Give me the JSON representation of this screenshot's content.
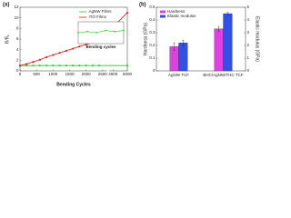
{
  "chart_data": [
    {
      "type": "line",
      "panel_label": "(a)",
      "xlabel": "Bending Cycles",
      "ylabel": "R/R₀",
      "x": [
        0,
        200,
        400,
        600,
        800,
        1000,
        1200,
        1400,
        1600,
        1800,
        2000,
        2200,
        2400,
        5000
      ],
      "series": [
        {
          "name": "AgNW Films",
          "color": "#22cc22",
          "marker": "square",
          "values": [
            1,
            1,
            1,
            1,
            1,
            1,
            1,
            1,
            1,
            1,
            1,
            1,
            1,
            1
          ]
        },
        {
          "name": "ITO Films",
          "color": "#e01010",
          "marker": "triangle",
          "values": [
            1,
            1.3,
            1.7,
            2.1,
            2.6,
            3.0,
            3.4,
            3.8,
            4.2,
            4.6,
            5.0,
            5.3,
            5.6,
            11
          ]
        }
      ],
      "xlim": [
        0,
        5000
      ],
      "xbreak": [
        2600,
        4400
      ],
      "xticks": [
        0,
        500,
        1000,
        1500,
        2000,
        2500,
        4500,
        5000
      ],
      "ylim": [
        0,
        12
      ],
      "yticks": [
        0,
        2,
        4,
        6,
        8,
        10,
        12
      ],
      "legend": "upper right",
      "inset": {
        "type": "line",
        "xlabel": "Bending cycles",
        "x": [
          0,
          1000,
          2000,
          3000,
          4000,
          5000
        ],
        "values": [
          1,
          1.01,
          1.0,
          1.02,
          1.01,
          1.02
        ],
        "color": "#22cc22",
        "xlim": [
          0,
          5000
        ],
        "ylim": [
          0.9,
          1.1
        ]
      }
    },
    {
      "type": "bar",
      "panel_label": "(b)",
      "ylabel": "Hardness (GPa)",
      "y2label": "Elastic modulus (GPa)",
      "categories": [
        "AgNW TCF",
        "BHC/AgNW/THC TCF"
      ],
      "series": [
        {
          "name": "Hardness",
          "color": "#e040e0",
          "values": [
            0.19,
            0.33
          ],
          "errors": [
            0.03,
            0.02
          ]
        },
        {
          "name": "Elastic modulus",
          "color": "#3050e8",
          "axis": "y2",
          "values": [
            2.2,
            4.5
          ],
          "errors": [
            0.2,
            0.1
          ]
        }
      ],
      "ylim": [
        0,
        0.5
      ],
      "yticks": [
        0,
        0.1,
        0.2,
        0.3,
        0.4,
        0.5
      ],
      "y2lim": [
        0,
        5
      ],
      "y2ticks": [
        0,
        1,
        2,
        3,
        4,
        5
      ],
      "legend": "upper left"
    }
  ]
}
